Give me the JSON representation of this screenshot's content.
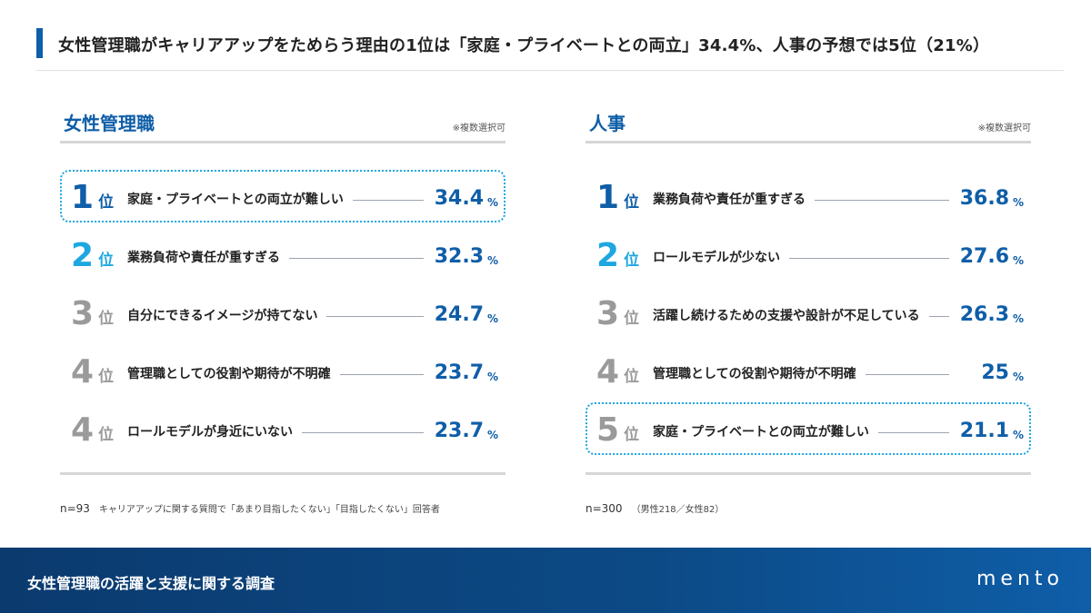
{
  "header": {
    "title": "女性管理職がキャリアアップをためらう理由の1位は「家庭・プライベートとの両立」34.4%、人事の予想では5位（21%）"
  },
  "chart_data": [
    {
      "type": "table",
      "title": "女性管理職",
      "note": "※複数選択可",
      "rank_suffix": "位",
      "unit": "%",
      "rows": [
        {
          "rank": "1",
          "label": "家庭・プライベートとの両立が難しい",
          "value": "34.4",
          "highlight": true
        },
        {
          "rank": "2",
          "label": "業務負荷や責任が重すぎる",
          "value": "32.3",
          "highlight": false
        },
        {
          "rank": "3",
          "label": "自分にできるイメージが持てない",
          "value": "24.7",
          "highlight": false
        },
        {
          "rank": "4",
          "label": "管理職としての役割や期待が不明確",
          "value": "23.7",
          "highlight": false
        },
        {
          "rank": "4",
          "label": "ロールモデルが身近にいない",
          "value": "23.7",
          "highlight": false
        }
      ],
      "footnote_n": "n=93",
      "footnote_text": "キャリアアップに関する質問で「あまり目指したくない」「目指したくない」回答者"
    },
    {
      "type": "table",
      "title": "人事",
      "note": "※複数選択可",
      "rank_suffix": "位",
      "unit": "%",
      "rows": [
        {
          "rank": "1",
          "label": "業務負荷や責任が重すぎる",
          "value": "36.8",
          "highlight": false
        },
        {
          "rank": "2",
          "label": "ロールモデルが少ない",
          "value": "27.6",
          "highlight": false
        },
        {
          "rank": "3",
          "label": "活躍し続けるための支援や設計が不足している",
          "value": "26.3",
          "highlight": false
        },
        {
          "rank": "4",
          "label": "管理職としての役割や期待が不明確",
          "value": "25",
          "highlight": false
        },
        {
          "rank": "5",
          "label": "家庭・プライベートとの両立が難しい",
          "value": "21.1",
          "highlight": true
        }
      ],
      "footnote_n": "n=300",
      "footnote_text": "（男性218／女性82）"
    }
  ],
  "footer": {
    "title": "女性管理職の活躍と支援に関する調査",
    "logo": "mento"
  }
}
